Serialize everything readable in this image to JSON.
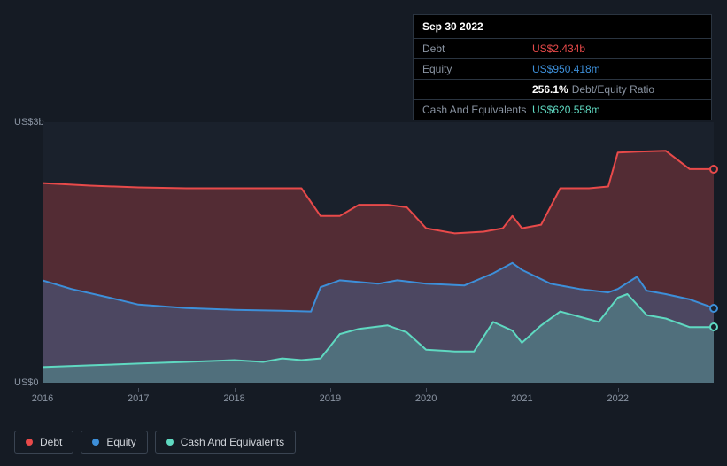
{
  "tooltip": {
    "date": "Sep 30 2022",
    "rows": [
      {
        "label": "Debt",
        "value": "US$2.434b",
        "color": "#e84a4a"
      },
      {
        "label": "Equity",
        "value": "US$950.418m",
        "color": "#3d8fd9"
      },
      {
        "label": "",
        "ratio_value": "256.1%",
        "ratio_label": "Debt/Equity Ratio"
      },
      {
        "label": "Cash And Equivalents",
        "value": "US$620.558m",
        "color": "#5fd9c1"
      }
    ]
  },
  "chart": {
    "type": "area",
    "background_color": "#151b24",
    "plot_background": "#1a212c",
    "y_axis": {
      "min": 0,
      "max": 3,
      "ticks": [
        {
          "v": 3,
          "label": "US$3b"
        },
        {
          "v": 0,
          "label": "US$0"
        }
      ],
      "label_color": "#8a94a2",
      "label_fontsize": 11
    },
    "x_axis": {
      "min": 2016,
      "max": 2023,
      "ticks": [
        2016,
        2017,
        2018,
        2019,
        2020,
        2021,
        2022
      ],
      "label_color": "#8a94a2",
      "label_fontsize": 11
    },
    "series": [
      {
        "name": "Debt",
        "color": "#e84a4a",
        "fill_opacity": 0.28,
        "line_width": 2,
        "data": [
          [
            2016.0,
            2.3
          ],
          [
            2016.5,
            2.27
          ],
          [
            2017.0,
            2.25
          ],
          [
            2017.5,
            2.24
          ],
          [
            2018.0,
            2.24
          ],
          [
            2018.5,
            2.24
          ],
          [
            2018.7,
            2.24
          ],
          [
            2018.9,
            1.92
          ],
          [
            2019.1,
            1.92
          ],
          [
            2019.3,
            2.05
          ],
          [
            2019.6,
            2.05
          ],
          [
            2019.8,
            2.02
          ],
          [
            2020.0,
            1.78
          ],
          [
            2020.3,
            1.72
          ],
          [
            2020.6,
            1.74
          ],
          [
            2020.8,
            1.78
          ],
          [
            2020.9,
            1.92
          ],
          [
            2021.0,
            1.78
          ],
          [
            2021.2,
            1.82
          ],
          [
            2021.4,
            2.24
          ],
          [
            2021.7,
            2.24
          ],
          [
            2021.9,
            2.26
          ],
          [
            2022.0,
            2.65
          ],
          [
            2022.2,
            2.66
          ],
          [
            2022.5,
            2.67
          ],
          [
            2022.75,
            2.46
          ],
          [
            2023.0,
            2.46
          ]
        ]
      },
      {
        "name": "Equity",
        "color": "#3d8fd9",
        "fill_opacity": 0.28,
        "line_width": 2,
        "data": [
          [
            2016.0,
            1.18
          ],
          [
            2016.3,
            1.08
          ],
          [
            2016.7,
            0.98
          ],
          [
            2017.0,
            0.9
          ],
          [
            2017.5,
            0.86
          ],
          [
            2018.0,
            0.84
          ],
          [
            2018.5,
            0.83
          ],
          [
            2018.8,
            0.82
          ],
          [
            2018.9,
            1.1
          ],
          [
            2019.1,
            1.18
          ],
          [
            2019.5,
            1.14
          ],
          [
            2019.7,
            1.18
          ],
          [
            2020.0,
            1.14
          ],
          [
            2020.4,
            1.12
          ],
          [
            2020.7,
            1.26
          ],
          [
            2020.9,
            1.38
          ],
          [
            2021.0,
            1.3
          ],
          [
            2021.3,
            1.14
          ],
          [
            2021.6,
            1.08
          ],
          [
            2021.9,
            1.04
          ],
          [
            2022.0,
            1.08
          ],
          [
            2022.2,
            1.22
          ],
          [
            2022.3,
            1.06
          ],
          [
            2022.5,
            1.02
          ],
          [
            2022.75,
            0.96
          ],
          [
            2023.0,
            0.86
          ]
        ]
      },
      {
        "name": "Cash And Equivalents",
        "color": "#5fd9c1",
        "fill_opacity": 0.28,
        "line_width": 2,
        "data": [
          [
            2016.0,
            0.18
          ],
          [
            2016.5,
            0.2
          ],
          [
            2017.0,
            0.22
          ],
          [
            2017.5,
            0.24
          ],
          [
            2018.0,
            0.26
          ],
          [
            2018.3,
            0.24
          ],
          [
            2018.5,
            0.28
          ],
          [
            2018.7,
            0.26
          ],
          [
            2018.9,
            0.28
          ],
          [
            2019.1,
            0.56
          ],
          [
            2019.3,
            0.62
          ],
          [
            2019.6,
            0.66
          ],
          [
            2019.8,
            0.58
          ],
          [
            2020.0,
            0.38
          ],
          [
            2020.3,
            0.36
          ],
          [
            2020.5,
            0.36
          ],
          [
            2020.7,
            0.7
          ],
          [
            2020.9,
            0.6
          ],
          [
            2021.0,
            0.46
          ],
          [
            2021.2,
            0.66
          ],
          [
            2021.4,
            0.82
          ],
          [
            2021.6,
            0.76
          ],
          [
            2021.8,
            0.7
          ],
          [
            2022.0,
            0.98
          ],
          [
            2022.1,
            1.02
          ],
          [
            2022.3,
            0.78
          ],
          [
            2022.5,
            0.74
          ],
          [
            2022.75,
            0.64
          ],
          [
            2023.0,
            0.64
          ]
        ]
      }
    ],
    "legend": {
      "items": [
        {
          "label": "Debt",
          "color": "#e84a4a"
        },
        {
          "label": "Equity",
          "color": "#3d8fd9"
        },
        {
          "label": "Cash And Equivalents",
          "color": "#5fd9c1"
        }
      ],
      "border_color": "#3a4452",
      "text_color": "#d0d4da",
      "fontsize": 12
    }
  }
}
